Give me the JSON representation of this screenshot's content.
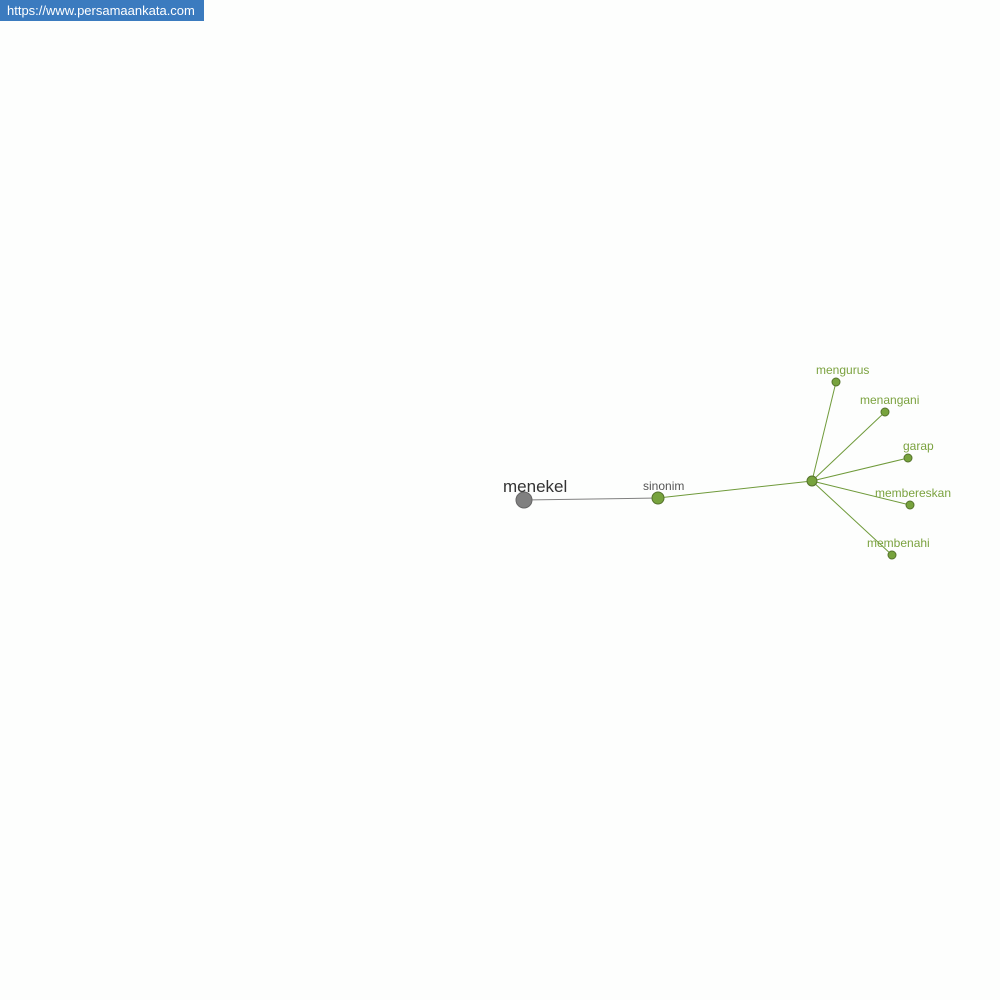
{
  "watermark": "https://www.persamaankata.com",
  "colors": {
    "root": "#808080",
    "accent": "#6f9a3a",
    "label": "#7ba23f",
    "badge": "#3b7bbf"
  },
  "graph": {
    "root": "menekel",
    "relation": "sinonim",
    "synonyms": [
      "mengurus",
      "menangani",
      "garap",
      "membereskan",
      "membenahi"
    ]
  }
}
